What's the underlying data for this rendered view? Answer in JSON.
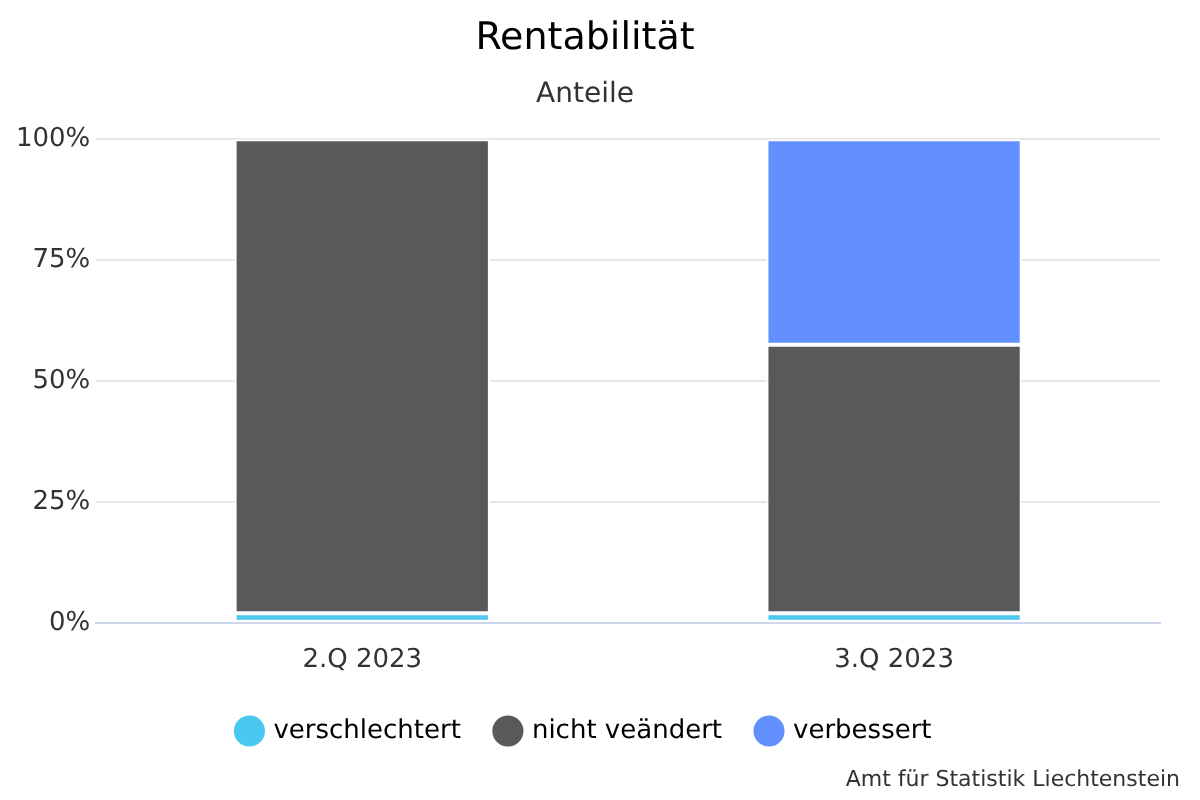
{
  "chart_data": {
    "type": "bar",
    "title": "Rentabilität",
    "subtitle": "Anteile",
    "categories": [
      "2.Q 2023",
      "3.Q 2023"
    ],
    "stacked": true,
    "series": [
      {
        "name": "verschlechtert",
        "color": "#4bc8f0",
        "values": [
          2,
          2
        ]
      },
      {
        "name": "nicht veändert",
        "color": "#59595b",
        "values": [
          98,
          55.5
        ]
      },
      {
        "name": "verbessert",
        "color": "#6390ff",
        "values": [
          0,
          42.5
        ]
      }
    ],
    "ylim": [
      0,
      100
    ],
    "yticks": [
      {
        "value": 0,
        "label": "0%"
      },
      {
        "value": 25,
        "label": "25%"
      },
      {
        "value": 50,
        "label": "50%"
      },
      {
        "value": 75,
        "label": "75%"
      },
      {
        "value": 100,
        "label": "100%"
      }
    ],
    "grid": "y",
    "legend": "bottom",
    "annotations": [
      "Amt für Statistik Liechtenstein"
    ]
  }
}
